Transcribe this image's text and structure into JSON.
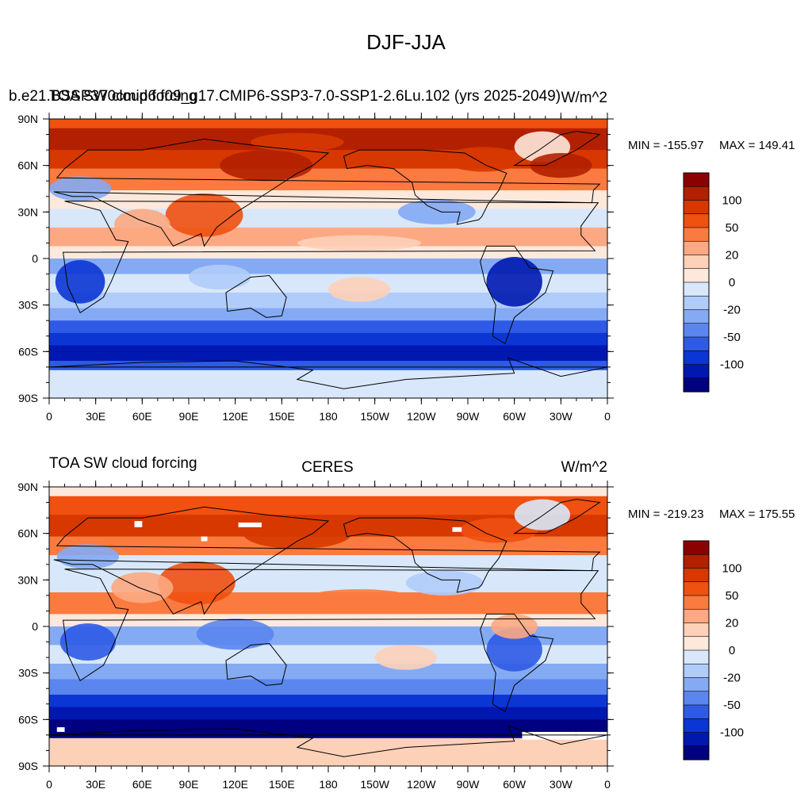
{
  "figure": {
    "title": "DJF-JJA"
  },
  "colorbar": {
    "labels": [
      "100",
      "50",
      "20",
      "0",
      "-20",
      "-50",
      "-100"
    ],
    "colors": [
      "#8b0000",
      "#b32000",
      "#d63800",
      "#f05010",
      "#fa7a40",
      "#fca882",
      "#fdd0b8",
      "#fde8dc",
      "#d8e8fa",
      "#b0ccfa",
      "#84aaf4",
      "#5a86ee",
      "#2e5ae6",
      "#0c36d4",
      "#0018b0",
      "#000080"
    ]
  },
  "x_ticks": [
    "0",
    "30E",
    "60E",
    "90E",
    "120E",
    "150E",
    "180",
    "150W",
    "120W",
    "90W",
    "60W",
    "30W",
    "0"
  ],
  "y_ticks": [
    "90N",
    "60N",
    "30N",
    "0",
    "30S",
    "60S",
    "90S"
  ],
  "chart_data": [
    {
      "type": "heatmap",
      "title_left": "b.e21.BSSP370cmip6.f09_g17.CMIP6-SSP3-7.0-SSP1-2.6Lu.102 (yrs 2025-2049)",
      "title_left_overlap": "TOA SW cloud forcing",
      "title_right": "W/m^2",
      "min_label": "MIN = -155.97",
      "max_label": "MAX = 149.41",
      "min": -155.97,
      "max": 149.41,
      "xlim": [
        "0",
        "0"
      ],
      "ylim": [
        "90S",
        "90N"
      ]
    },
    {
      "type": "heatmap",
      "title_left": "TOA SW cloud forcing",
      "title_center": "CERES",
      "title_right": "W/m^2",
      "min_label": "MIN = -219.23",
      "max_label": "MAX = 175.55",
      "min": -219.23,
      "max": 175.55,
      "xlim": [
        "0",
        "0"
      ],
      "ylim": [
        "90S",
        "90N"
      ]
    }
  ]
}
